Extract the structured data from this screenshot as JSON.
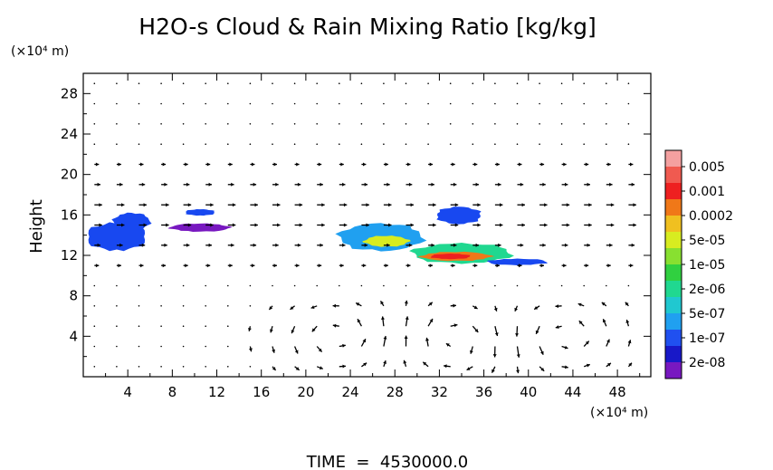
{
  "chart_data": {
    "type": "heatmap",
    "title": "H2O-s Cloud & Rain Mixing Ratio [kg/kg]",
    "ylabel": "Height",
    "x_unit_label": "(×10⁴ m)",
    "y_unit_label": "(×10⁴ m)",
    "footer": "TIME  =  4530000.0",
    "xlim": [
      0,
      51
    ],
    "ylim": [
      0,
      30
    ],
    "x_ticks": [
      "4",
      "8",
      "12",
      "16",
      "20",
      "24",
      "28",
      "32",
      "36",
      "40",
      "44",
      "48"
    ],
    "y_ticks": [
      "4",
      "8",
      "12",
      "16",
      "20",
      "24",
      "28"
    ],
    "grid": false,
    "colorbar": {
      "position": "right",
      "labels": [
        "0.005",
        "0.001",
        "0.0002",
        "5e-05",
        "1e-05",
        "2e-06",
        "5e-07",
        "1e-07",
        "2e-08"
      ],
      "colors_top_to_bottom": [
        "#f4a0a0",
        "#f05a50",
        "#ee2020",
        "#f07818",
        "#f0c020",
        "#d8ec20",
        "#88e030",
        "#30d040",
        "#20d890",
        "#20c8d0",
        "#20a0f0",
        "#2050f0",
        "#1818c8",
        "#7818c0"
      ]
    },
    "cloud_regions": [
      {
        "xmin": 0,
        "xmax": 6,
        "ymin": 12.3,
        "ymax": 15.4,
        "level": "1e-07",
        "color": "#1848f0"
      },
      {
        "xmin": 2.5,
        "xmax": 6.2,
        "ymin": 14.4,
        "ymax": 16.3,
        "level": "1e-07",
        "color": "#1848f0"
      },
      {
        "xmin": 7.5,
        "xmax": 13.5,
        "ymin": 14.3,
        "ymax": 15.2,
        "level": "2e-08",
        "color": "#7818c0"
      },
      {
        "xmin": 9,
        "xmax": 12,
        "ymin": 15.9,
        "ymax": 16.6,
        "level": "1e-07",
        "color": "#1848f0"
      },
      {
        "xmin": 22.5,
        "xmax": 31,
        "ymin": 12.3,
        "ymax": 15.3,
        "level": "5e-07",
        "color": "#20a0f0"
      },
      {
        "xmin": 25,
        "xmax": 29.5,
        "ymin": 12.8,
        "ymax": 14.0,
        "level": "5e-05",
        "color": "#d8ec20"
      },
      {
        "xmin": 31.5,
        "xmax": 36,
        "ymin": 15.0,
        "ymax": 16.9,
        "level": "1e-07",
        "color": "#1848f0"
      },
      {
        "xmin": 29,
        "xmax": 39,
        "ymin": 11.1,
        "ymax": 13.3,
        "level": "2e-06",
        "color": "#20d890"
      },
      {
        "xmin": 30,
        "xmax": 37,
        "ymin": 11.4,
        "ymax": 12.4,
        "level": "0.0002",
        "color": "#f07818"
      },
      {
        "xmin": 31,
        "xmax": 35,
        "ymin": 11.6,
        "ymax": 12.2,
        "level": "0.001",
        "color": "#ee2020"
      },
      {
        "xmin": 36,
        "xmax": 42,
        "ymin": 11.0,
        "ymax": 11.7,
        "level": "1e-07",
        "color": "#1848f0"
      }
    ],
    "wind_vectors": {
      "grid_x_spacing": 2,
      "grid_y_spacing": 2,
      "description_free": true
    }
  }
}
